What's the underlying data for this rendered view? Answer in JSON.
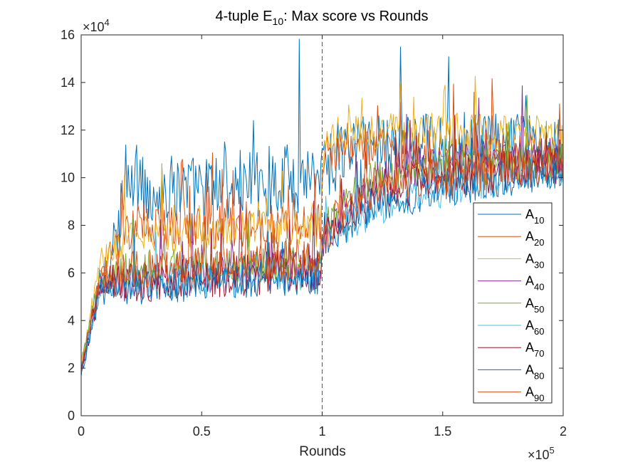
{
  "chart_data": {
    "type": "line",
    "title": {
      "prefix": "4-tuple E",
      "sub": "10",
      "suffix": ": Max score vs Rounds"
    },
    "xlabel": "Rounds",
    "ylabel": "",
    "xlim": [
      0,
      200000
    ],
    "ylim": [
      0,
      160000
    ],
    "x_ticks": [
      0,
      50000,
      100000,
      150000,
      200000
    ],
    "x_tick_labels": [
      "0",
      "0.5",
      "1",
      "1.5",
      "2"
    ],
    "y_ticks": [
      0,
      20000,
      40000,
      60000,
      80000,
      100000,
      120000,
      140000,
      160000
    ],
    "y_tick_labels": [
      "0",
      "2",
      "4",
      "6",
      "8",
      "10",
      "12",
      "14",
      "16"
    ],
    "x_multiplier": {
      "base": "×10",
      "exp": "5"
    },
    "y_multiplier": {
      "base": "×10",
      "exp": "4"
    },
    "vline_x": 100000,
    "legend_position": "lower-right",
    "grid": false,
    "series": [
      {
        "name": "A",
        "sub": "10",
        "color": "#0072BD",
        "profile": [
          [
            0,
            17000
          ],
          [
            8000,
            55000
          ],
          [
            20000,
            95000
          ],
          [
            50000,
            95000
          ],
          [
            90000,
            100000
          ],
          [
            100000,
            105000
          ],
          [
            115000,
            115000
          ],
          [
            200000,
            112000
          ]
        ],
        "amp": 15000
      },
      {
        "name": "A",
        "sub": "20",
        "color": "#D95319",
        "profile": [
          [
            0,
            19000
          ],
          [
            8000,
            60000
          ],
          [
            20000,
            78000
          ],
          [
            50000,
            79000
          ],
          [
            99000,
            80000
          ],
          [
            101000,
            110000
          ],
          [
            120000,
            112000
          ],
          [
            200000,
            110000
          ]
        ],
        "amp": 9000
      },
      {
        "name": "A",
        "sub": "30",
        "color": "#EDB120",
        "profile": [
          [
            0,
            22000
          ],
          [
            8000,
            65000
          ],
          [
            20000,
            76000
          ],
          [
            50000,
            77000
          ],
          [
            99000,
            79000
          ],
          [
            101000,
            115000
          ],
          [
            120000,
            120000
          ],
          [
            200000,
            118000
          ]
        ],
        "amp": 8000
      },
      {
        "name": "A",
        "sub": "40",
        "color": "#7E2F8E",
        "profile": [
          [
            0,
            20000
          ],
          [
            8000,
            55000
          ],
          [
            30000,
            58000
          ],
          [
            60000,
            60000
          ],
          [
            99000,
            62000
          ],
          [
            101000,
            75000
          ],
          [
            115000,
            95000
          ],
          [
            140000,
            105000
          ],
          [
            200000,
            108000
          ]
        ],
        "amp": 9000
      },
      {
        "name": "A",
        "sub": "50",
        "color": "#77AC30",
        "profile": [
          [
            0,
            21000
          ],
          [
            8000,
            60000
          ],
          [
            30000,
            62000
          ],
          [
            60000,
            63000
          ],
          [
            99000,
            64000
          ],
          [
            101000,
            80000
          ],
          [
            120000,
            100000
          ],
          [
            200000,
            108000
          ]
        ],
        "amp": 8000
      },
      {
        "name": "A",
        "sub": "60",
        "color": "#4DBEEE",
        "profile": [
          [
            0,
            20000
          ],
          [
            8000,
            55000
          ],
          [
            30000,
            57000
          ],
          [
            60000,
            58000
          ],
          [
            99000,
            60000
          ],
          [
            101000,
            75000
          ],
          [
            130000,
            90000
          ],
          [
            200000,
            105000
          ]
        ],
        "amp": 7000
      },
      {
        "name": "A",
        "sub": "70",
        "color": "#A2142F",
        "profile": [
          [
            0,
            19000
          ],
          [
            8000,
            55000
          ],
          [
            30000,
            57000
          ],
          [
            60000,
            59000
          ],
          [
            99000,
            61000
          ],
          [
            101000,
            76000
          ],
          [
            125000,
            95000
          ],
          [
            200000,
            106000
          ]
        ],
        "amp": 9000
      },
      {
        "name": "A",
        "sub": "80",
        "color": "#0072BD",
        "profile": [
          [
            0,
            18000
          ],
          [
            8000,
            52000
          ],
          [
            30000,
            55000
          ],
          [
            60000,
            57000
          ],
          [
            99000,
            59000
          ],
          [
            101000,
            74000
          ],
          [
            125000,
            90000
          ],
          [
            200000,
            104000
          ]
        ],
        "amp": 8000
      },
      {
        "name": "A",
        "sub": "90",
        "color": "#D95319",
        "profile": [
          [
            0,
            20000
          ],
          [
            8000,
            58000
          ],
          [
            30000,
            62000
          ],
          [
            60000,
            64000
          ],
          [
            99000,
            66000
          ],
          [
            101000,
            78000
          ],
          [
            125000,
            98000
          ],
          [
            200000,
            106000
          ]
        ],
        "amp": 9000
      }
    ]
  }
}
